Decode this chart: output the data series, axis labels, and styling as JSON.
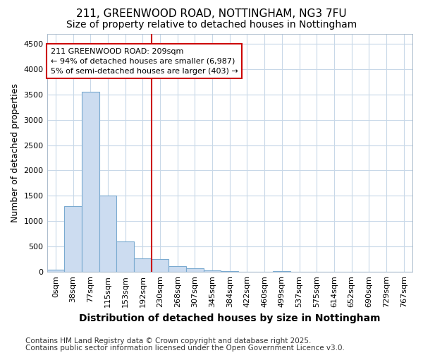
{
  "title1": "211, GREENWOOD ROAD, NOTTINGHAM, NG3 7FU",
  "title2": "Size of property relative to detached houses in Nottingham",
  "xlabel": "Distribution of detached houses by size in Nottingham",
  "ylabel": "Number of detached properties",
  "categories": [
    "0sqm",
    "38sqm",
    "77sqm",
    "115sqm",
    "153sqm",
    "192sqm",
    "230sqm",
    "268sqm",
    "307sqm",
    "345sqm",
    "384sqm",
    "422sqm",
    "460sqm",
    "499sqm",
    "537sqm",
    "575sqm",
    "614sqm",
    "652sqm",
    "690sqm",
    "729sqm",
    "767sqm"
  ],
  "bar_values": [
    50,
    1300,
    3550,
    1500,
    600,
    270,
    250,
    120,
    70,
    35,
    20,
    5,
    5,
    15,
    0,
    0,
    0,
    0,
    0,
    0,
    0
  ],
  "bar_color": "#ccdcf0",
  "bar_edge_color": "#7aaad0",
  "vline_x": 6.0,
  "vline_color": "#cc0000",
  "annotation_text": "211 GREENWOOD ROAD: 209sqm\n← 94% of detached houses are smaller (6,987)\n5% of semi-detached houses are larger (403) →",
  "annotation_box_color": "#cc0000",
  "ylim": [
    0,
    4700
  ],
  "yticks": [
    0,
    500,
    1000,
    1500,
    2000,
    2500,
    3000,
    3500,
    4000,
    4500
  ],
  "footer1": "Contains HM Land Registry data © Crown copyright and database right 2025.",
  "footer2": "Contains public sector information licensed under the Open Government Licence v3.0.",
  "background_color": "#ffffff",
  "plot_bg_color": "#ffffff",
  "grid_color": "#c8d8e8",
  "title1_fontsize": 11,
  "title2_fontsize": 10,
  "xlabel_fontsize": 10,
  "ylabel_fontsize": 9,
  "tick_fontsize": 8,
  "footer_fontsize": 7.5
}
